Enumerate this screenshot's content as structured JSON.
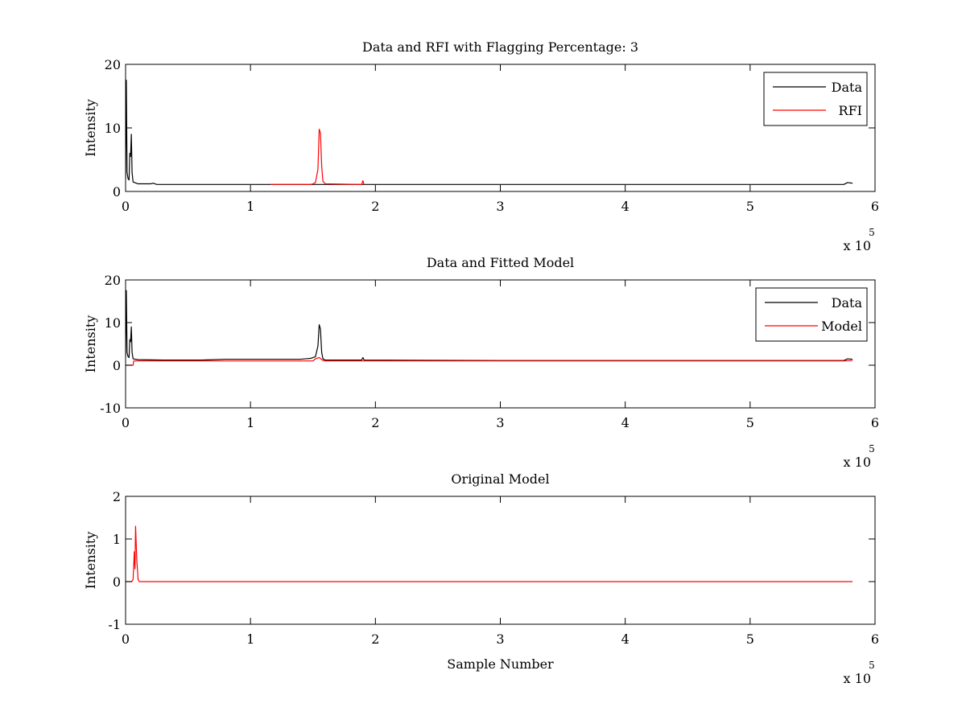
{
  "figure": {
    "background": "#ffffff",
    "axes_color": "#000000",
    "data_color": "#000000",
    "model_color": "#ff0000"
  },
  "chart_data": [
    {
      "type": "line",
      "title": "Data and RFI with Flagging Percentage: 3",
      "xlabel": "",
      "ylabel": "Intensity",
      "xlim": [
        0,
        600000
      ],
      "ylim": [
        0,
        20
      ],
      "xticks": [
        0,
        100000,
        200000,
        300000,
        400000,
        500000,
        600000
      ],
      "xtick_labels": [
        "0",
        "1",
        "2",
        "3",
        "4",
        "5",
        "6"
      ],
      "yticks": [
        0,
        10,
        20
      ],
      "ytick_labels": [
        "0",
        "10",
        "20"
      ],
      "x_multiplier": {
        "base": "x 10",
        "exponent": "5"
      },
      "grid": false,
      "legend": {
        "position": "top-right",
        "entries": [
          {
            "label": "Data",
            "color": "#000000"
          },
          {
            "label": "RFI",
            "color": "#ff0000"
          }
        ]
      },
      "series": [
        {
          "name": "Data",
          "color": "#000000",
          "points": [
            [
              0,
              2.0
            ],
            [
              600,
              17.5
            ],
            [
              1200,
              3.0
            ],
            [
              2000,
              2.0
            ],
            [
              2800,
              1.8
            ],
            [
              3400,
              6.0
            ],
            [
              4000,
              5.5
            ],
            [
              4600,
              9.0
            ],
            [
              5200,
              3.0
            ],
            [
              6000,
              1.5
            ],
            [
              10000,
              1.2
            ],
            [
              20000,
              1.2
            ],
            [
              22000,
              1.3
            ],
            [
              25000,
              1.1
            ],
            [
              30000,
              1.1
            ],
            [
              60000,
              1.1
            ],
            [
              100000,
              1.1
            ],
            [
              150000,
              1.1
            ],
            [
              190000,
              1.1
            ],
            [
              300000,
              1.1
            ],
            [
              400000,
              1.1
            ],
            [
              500000,
              1.1
            ],
            [
              575000,
              1.1
            ],
            [
              578000,
              1.4
            ],
            [
              582000,
              1.3
            ]
          ]
        },
        {
          "name": "RFI",
          "color": "#ff0000",
          "points": [
            [
              116000,
              1.1
            ],
            [
              118000,
              1.1
            ],
            [
              148000,
              1.1
            ],
            [
              150000,
              1.2
            ],
            [
              152000,
              1.4
            ],
            [
              154000,
              3.5
            ],
            [
              155000,
              9.8
            ],
            [
              156000,
              9.2
            ],
            [
              157000,
              4.0
            ],
            [
              158000,
              1.6
            ],
            [
              160000,
              1.2
            ],
            [
              189000,
              1.1
            ],
            [
              190000,
              1.7
            ],
            [
              190800,
              1.1
            ]
          ]
        }
      ]
    },
    {
      "type": "line",
      "title": "Data and Fitted Model",
      "xlabel": "",
      "ylabel": "Intensity",
      "xlim": [
        0,
        600000
      ],
      "ylim": [
        -10,
        20
      ],
      "xticks": [
        0,
        100000,
        200000,
        300000,
        400000,
        500000,
        600000
      ],
      "xtick_labels": [
        "0",
        "1",
        "2",
        "3",
        "4",
        "5",
        "6"
      ],
      "yticks": [
        -10,
        0,
        10,
        20
      ],
      "ytick_labels": [
        "-10",
        "0",
        "10",
        "20"
      ],
      "x_multiplier": {
        "base": "x 10",
        "exponent": "5"
      },
      "grid": false,
      "legend": {
        "position": "top-right",
        "entries": [
          {
            "label": "Data",
            "color": "#000000"
          },
          {
            "label": "Model",
            "color": "#ff0000"
          }
        ]
      },
      "series": [
        {
          "name": "Data",
          "color": "#000000",
          "points": [
            [
              0,
              2.0
            ],
            [
              600,
              17.5
            ],
            [
              1200,
              3.0
            ],
            [
              2000,
              2.0
            ],
            [
              2800,
              1.8
            ],
            [
              3400,
              6.0
            ],
            [
              4000,
              5.5
            ],
            [
              4600,
              9.0
            ],
            [
              5200,
              3.0
            ],
            [
              6000,
              1.5
            ],
            [
              10000,
              1.3
            ],
            [
              30000,
              1.2
            ],
            [
              60000,
              1.2
            ],
            [
              80000,
              1.4
            ],
            [
              100000,
              1.4
            ],
            [
              140000,
              1.4
            ],
            [
              148000,
              1.6
            ],
            [
              152000,
              2.0
            ],
            [
              154000,
              4.5
            ],
            [
              155000,
              9.5
            ],
            [
              156000,
              8.5
            ],
            [
              157000,
              3.0
            ],
            [
              158000,
              1.5
            ],
            [
              160000,
              1.2
            ],
            [
              189000,
              1.2
            ],
            [
              190000,
              1.8
            ],
            [
              191000,
              1.2
            ],
            [
              300000,
              1.1
            ],
            [
              400000,
              1.1
            ],
            [
              500000,
              1.1
            ],
            [
              575000,
              1.1
            ],
            [
              578000,
              1.5
            ],
            [
              582000,
              1.4
            ]
          ]
        },
        {
          "name": "Model",
          "color": "#ff0000",
          "points": [
            [
              0,
              0
            ],
            [
              6000,
              0
            ],
            [
              6500,
              1.0
            ],
            [
              150000,
              1.0
            ],
            [
              152000,
              1.5
            ],
            [
              155000,
              1.8
            ],
            [
              158000,
              1.1
            ],
            [
              160000,
              1.0
            ],
            [
              500000,
              1.0
            ],
            [
              575000,
              1.0
            ],
            [
              582000,
              1.1
            ]
          ]
        }
      ]
    },
    {
      "type": "line",
      "title": "Original Model",
      "xlabel": "Sample Number",
      "ylabel": "Intensity",
      "xlim": [
        0,
        600000
      ],
      "ylim": [
        -1,
        2
      ],
      "xticks": [
        0,
        100000,
        200000,
        300000,
        400000,
        500000,
        600000
      ],
      "xtick_labels": [
        "0",
        "1",
        "2",
        "3",
        "4",
        "5",
        "6"
      ],
      "yticks": [
        -1,
        0,
        1,
        2
      ],
      "ytick_labels": [
        "-1",
        "0",
        "1",
        "2"
      ],
      "x_multiplier": {
        "base": "x 10",
        "exponent": "5"
      },
      "grid": false,
      "legend": null,
      "series": [
        {
          "name": "",
          "color": "#ff0000",
          "points": [
            [
              0,
              0
            ],
            [
              5000,
              0
            ],
            [
              6000,
              0.05
            ],
            [
              7000,
              0.7
            ],
            [
              7500,
              0.3
            ],
            [
              8000,
              1.3
            ],
            [
              9000,
              0.5
            ],
            [
              10000,
              0.05
            ],
            [
              11000,
              0
            ],
            [
              582000,
              0
            ]
          ]
        }
      ]
    }
  ]
}
